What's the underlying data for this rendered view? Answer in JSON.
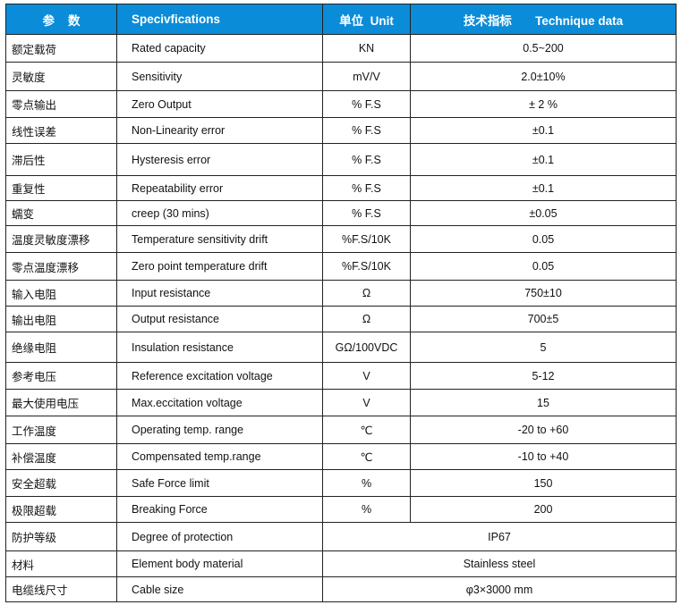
{
  "table": {
    "header": [
      "参    数",
      "Specivfications",
      "单位  Unit",
      "技术指标       Technique data"
    ],
    "rows": [
      [
        "额定载荷",
        "Rated capacity",
        "KN",
        "0.5~200"
      ],
      [
        "灵敏度",
        "Sensitivity",
        "mV/V",
        "2.0±10%"
      ],
      [
        "零点输出",
        "Zero Output",
        "% F.S",
        "± 2 %"
      ],
      [
        "线性误差",
        "Non-Linearity error",
        "% F.S",
        "±0.1"
      ],
      [
        "滞后性",
        "Hysteresis error",
        "% F.S",
        "±0.1"
      ],
      [
        "重复性",
        "Repeatability error",
        "% F.S",
        "±0.1"
      ],
      [
        "蠕变",
        "creep (30 mins)",
        "% F.S",
        "±0.05"
      ],
      [
        "温度灵敏度漂移",
        "Temperature sensitivity drift",
        "%F.S/10K",
        "0.05"
      ],
      [
        "零点温度漂移",
        "Zero point temperature drift",
        "%F.S/10K",
        "0.05"
      ],
      [
        "输入电阻",
        "Input resistance",
        "Ω",
        "750±10"
      ],
      [
        "输出电阻",
        "Output resistance",
        "Ω",
        "700±5"
      ],
      [
        "绝缘电阻",
        "Insulation resistance",
        "GΩ/100VDC",
        "5"
      ],
      [
        "参考电压",
        "Reference excitation voltage",
        "V",
        "5-12"
      ],
      [
        "最大使用电压",
        "Max.eccitation voltage",
        "V",
        "15"
      ],
      [
        "工作温度",
        "Operating temp. range",
        "℃",
        "-20 to +60"
      ],
      [
        "补偿温度",
        "Compensated temp.range",
        "℃",
        "-10 to +40"
      ],
      [
        "安全超载",
        "Safe Force limit",
        "%",
        "150"
      ],
      [
        "极限超载",
        "Breaking Force",
        "%",
        "200"
      ],
      [
        "防护等级",
        "Degree of protection",
        "IP67"
      ],
      [
        "材料",
        "Element body material",
        "Stainless steel"
      ],
      [
        "电缆线尺寸",
        "Cable size",
        "φ3×3000 mm"
      ]
    ]
  }
}
